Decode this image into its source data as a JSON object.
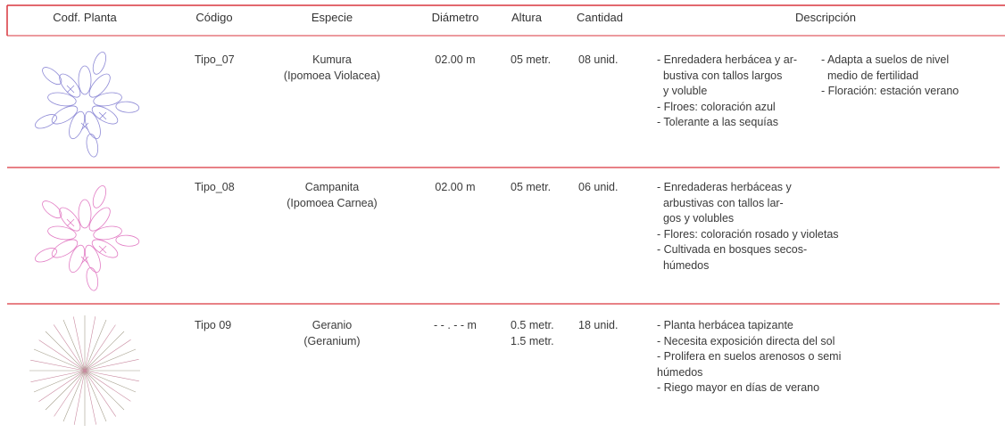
{
  "header": {
    "columns": [
      "Codf. Planta",
      "Código",
      "Especie",
      "Diámetro",
      "Altura",
      "Cantidad",
      "Descripción"
    ]
  },
  "table": {
    "rows": [
      {
        "code": "Tipo_07",
        "species": [
          "Kumura",
          "(Ipomoea Violacea)"
        ],
        "diameter": "02.00 m",
        "height": [
          "05 metr."
        ],
        "quantity": "08 unid.",
        "description": [
          [
            "- Enredadera herbácea y ar-",
            "  bustiva con tallos largos",
            "  y voluble",
            "- Flroes: coloración azul",
            "- Tolerante a las sequías"
          ],
          [
            "- Adapta a suelos de nivel",
            "  medio de fertilidad",
            "- Floración: estación verano"
          ]
        ]
      },
      {
        "code": "Tipo_08",
        "species": [
          "Campanita",
          "(Ipomoea Carnea)"
        ],
        "diameter": "02.00 m",
        "height": [
          "05 metr."
        ],
        "quantity": "06 unid.",
        "description": [
          [
            "- Enredaderas herbáceas y",
            "  arbustivas con tallos lar-",
            "  gos y volubles",
            "- Flores: coloración rosado y violetas",
            "- Cultivada en bosques secos-",
            "  húmedos"
          ]
        ]
      },
      {
        "code": "Tipo 09",
        "species": [
          "Geranio",
          "(Geranium)"
        ],
        "diameter": "- - . - - m",
        "height": [
          "0.5 metr.",
          "1.5 metr."
        ],
        "quantity": "18 unid.",
        "description": [
          [
            "- Planta herbácea tapizante",
            "- Necesita exposición directa del sol",
            "- Prolifera en suelos arenosos o semi",
            "húmedos",
            "- Riego mayor en días de verano"
          ]
        ]
      }
    ]
  }
}
